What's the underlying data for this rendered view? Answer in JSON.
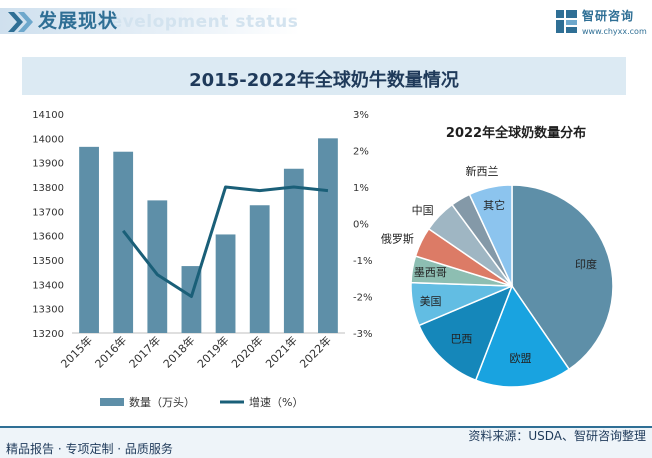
{
  "header": {
    "title": "发展现状",
    "subtitle": "Development status"
  },
  "logo": {
    "name": "智研咨询",
    "url": "www.chyxx.com"
  },
  "main_title": "2015-2022年全球奶牛数量情况",
  "footer": {
    "left": "精品报告 · 专项定制 · 品质服务",
    "source": "资料来源：USDA、智研咨询整理"
  },
  "colors": {
    "bar": "#5e8fa8",
    "line": "#1a5f78",
    "brand": "#2f6f95"
  },
  "chart_data": [
    {
      "type": "bar+line",
      "categories": [
        "2015年",
        "2016年",
        "2017年",
        "2018年",
        "2019年",
        "2020年",
        "2021年",
        "2022年"
      ],
      "series": [
        {
          "name": "数量（万头）",
          "type": "bar",
          "axis": "left",
          "values": [
            13965,
            13945,
            13745,
            13475,
            13605,
            13725,
            13875,
            14000
          ]
        },
        {
          "name": "增速（%）",
          "type": "line",
          "axis": "right",
          "values": [
            null,
            -0.2,
            -1.4,
            -2.0,
            1.0,
            0.9,
            1.0,
            0.9
          ]
        }
      ],
      "left_axis": {
        "ylim": [
          13200,
          14100
        ],
        "ticks": [
          13200,
          13300,
          13400,
          13500,
          13600,
          13700,
          13800,
          13900,
          14000,
          14100
        ]
      },
      "right_axis": {
        "ylim": [
          -3,
          3
        ],
        "ticks": [
          "-3%",
          "-2%",
          "-1%",
          "0%",
          "1%",
          "2%",
          "3%"
        ]
      },
      "legend": {
        "position": "bottom",
        "labels": [
          "数量（万头）",
          "增速（%）"
        ]
      }
    },
    {
      "type": "pie",
      "title": "2022年全球奶数量分布",
      "slices": [
        {
          "label": "印度",
          "value": 38,
          "color": "#5e8fa8"
        },
        {
          "label": "欧盟",
          "value": 14.5,
          "color": "#19a3e0"
        },
        {
          "label": "巴西",
          "value": 12,
          "color": "#1587ba"
        },
        {
          "label": "美国",
          "value": 6.5,
          "color": "#62bde3"
        },
        {
          "label": "墨西哥",
          "value": 4,
          "color": "#8dbeb2"
        },
        {
          "label": "俄罗斯",
          "value": 4.5,
          "color": "#dc7b66"
        },
        {
          "label": "中国",
          "value": 5,
          "color": "#9fb6c3"
        },
        {
          "label": "新西兰",
          "value": 3,
          "color": "#8499a8"
        },
        {
          "label": "其它",
          "value": 6.5,
          "color": "#8cc4ee"
        }
      ]
    }
  ]
}
